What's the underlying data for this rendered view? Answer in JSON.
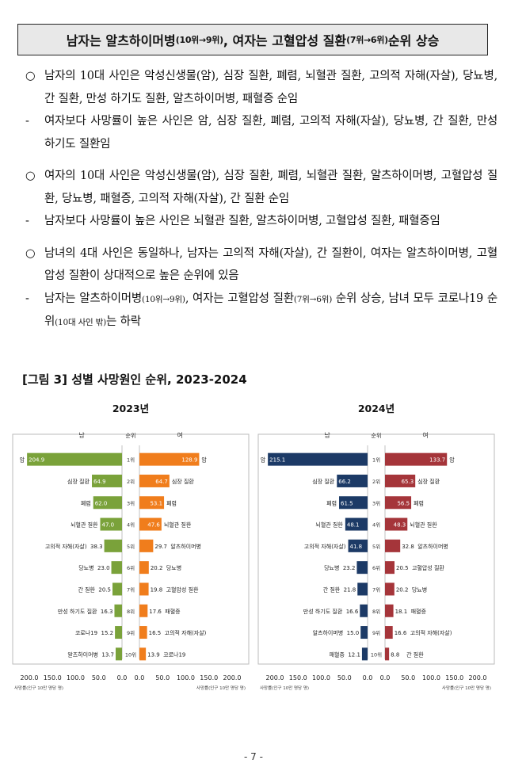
{
  "headline": {
    "lead": "남자는 알츠하이머병",
    "lead_small": "(10위→9위)",
    "mid": ", 여자는 고혈압성 질환",
    "mid_small": "(7위→6위)",
    "tail": " 순위 상승"
  },
  "paragraphs": [
    {
      "marker": "○",
      "text": "남자의 10대 사인은 악성신생물(암), 심장 질환, 폐렴, 뇌혈관 질환, 고의적 자해(자살), 당뇨병, 간 질환, 만성 하기도 질환, 알츠하이머병, 패혈증 순임"
    },
    {
      "marker": "-",
      "text": "여자보다 사망률이 높은 사인은 암, 심장 질환, 폐렴, 고의적 자해(자살), 당뇨병, 간 질환, 만성 하기도 질환임"
    },
    {
      "marker": "○",
      "text": "여자의 10대 사인은 악성신생물(암), 심장 질환, 폐렴, 뇌혈관 질환, 알츠하이머병, 고혈압성 질환, 당뇨병, 패혈증, 고의적 자해(자살), 간 질환 순임"
    },
    {
      "marker": "-",
      "text": "남자보다 사망률이 높은 사인은 뇌혈관 질환, 알츠하이머병, 고혈압성 질환, 패혈증임"
    },
    {
      "marker": "○",
      "text": "남녀의 4대 사인은 동일하나, 남자는 고의적 자해(자살), 간 질환이, 여자는 알츠하이머병, 고혈압성 질환이 상대적으로 높은 순위에 있음"
    }
  ],
  "last_para": {
    "marker": "-",
    "a": "남자는 알츠하이머병",
    "a_small": "(10위→9위)",
    "b": ", 여자는 고혈압성 질환",
    "b_small": "(7위→6위)",
    "c": " 순위 상승, 남녀 모두 코로나19 순위",
    "c_small": "(10대 사인 밖)",
    "d": "는 하락"
  },
  "figure_title": "[그림 3] 성별 사망원인 순위, 2023-2024",
  "page_number": "- 7 -",
  "chart_data": [
    {
      "type": "bar",
      "title": "2023년",
      "left_header": "남",
      "mid_header": "순위",
      "right_header": "여",
      "colors": {
        "male": "#7aa23a",
        "female": "#f07d1c"
      },
      "ranks": [
        "1위",
        "2위",
        "3위",
        "4위",
        "5위",
        "6위",
        "7위",
        "8위",
        "9위",
        "10위"
      ],
      "male": [
        {
          "cause": "암",
          "value": 204.9
        },
        {
          "cause": "심장 질환",
          "value": 64.9
        },
        {
          "cause": "폐렴",
          "value": 62.0
        },
        {
          "cause": "뇌혈관 질환",
          "value": 47.0
        },
        {
          "cause": "고의적 자해(자살)",
          "value": 38.3
        },
        {
          "cause": "당뇨병",
          "value": 23.0
        },
        {
          "cause": "간 질환",
          "value": 20.5
        },
        {
          "cause": "만성 하기도 질환",
          "value": 16.3
        },
        {
          "cause": "코로나19",
          "value": 15.2
        },
        {
          "cause": "알츠하이머병",
          "value": 13.7
        }
      ],
      "female": [
        {
          "cause": "암",
          "value": 128.9
        },
        {
          "cause": "심장 질환",
          "value": 64.7
        },
        {
          "cause": "폐렴",
          "value": 53.1
        },
        {
          "cause": "뇌혈관 질환",
          "value": 47.6
        },
        {
          "cause": "알츠하이머병",
          "value": 29.7
        },
        {
          "cause": "당뇨병",
          "value": 20.2
        },
        {
          "cause": "고혈압성 질환",
          "value": 19.8
        },
        {
          "cause": "패혈증",
          "value": 17.6
        },
        {
          "cause": "고의적 자해(자살)",
          "value": 16.5
        },
        {
          "cause": "코로나19",
          "value": 13.9
        }
      ],
      "xlim": [
        0,
        200
      ],
      "ticks": [
        "200.0",
        "150.0",
        "100.0",
        "50.0",
        "0.0"
      ],
      "left_unit": "사망률(인구 10만 명당 명)",
      "right_unit": "사망률(인구 10만 명당 명)"
    },
    {
      "type": "bar",
      "title": "2024년",
      "left_header": "남",
      "mid_header": "순위",
      "right_header": "여",
      "colors": {
        "male": "#1c3a66",
        "female": "#a5353a"
      },
      "ranks": [
        "1위",
        "2위",
        "3위",
        "4위",
        "5위",
        "6위",
        "7위",
        "8위",
        "9위",
        "10위"
      ],
      "male": [
        {
          "cause": "암",
          "value": 215.1
        },
        {
          "cause": "심장 질환",
          "value": 66.2
        },
        {
          "cause": "폐렴",
          "value": 61.5
        },
        {
          "cause": "뇌혈관 질환",
          "value": 48.1
        },
        {
          "cause": "고의적 자해(자살)",
          "value": 41.8
        },
        {
          "cause": "당뇨병",
          "value": 23.2
        },
        {
          "cause": "간 질환",
          "value": 21.8
        },
        {
          "cause": "만성 하기도 질환",
          "value": 16.6
        },
        {
          "cause": "알츠하이머병",
          "value": 15.0
        },
        {
          "cause": "패혈증",
          "value": 12.1
        }
      ],
      "female": [
        {
          "cause": "암",
          "value": 133.7
        },
        {
          "cause": "심장 질환",
          "value": 65.3
        },
        {
          "cause": "폐렴",
          "value": 56.5
        },
        {
          "cause": "뇌혈관 질환",
          "value": 48.3
        },
        {
          "cause": "알츠하이머병",
          "value": 32.8
        },
        {
          "cause": "고혈압성 질환",
          "value": 20.5
        },
        {
          "cause": "당뇨병",
          "value": 20.2
        },
        {
          "cause": "패혈증",
          "value": 18.1
        },
        {
          "cause": "고의적 자해(자살)",
          "value": 16.6
        },
        {
          "cause": "간 질환",
          "value": 8.8
        }
      ],
      "xlim": [
        0,
        200
      ],
      "ticks": [
        "200.0",
        "150.0",
        "100.0",
        "50.0",
        "0.0"
      ],
      "left_unit": "사망률(인구 10만 명당 명)",
      "right_unit": "사망률(인구 10만 명당 명)"
    }
  ]
}
